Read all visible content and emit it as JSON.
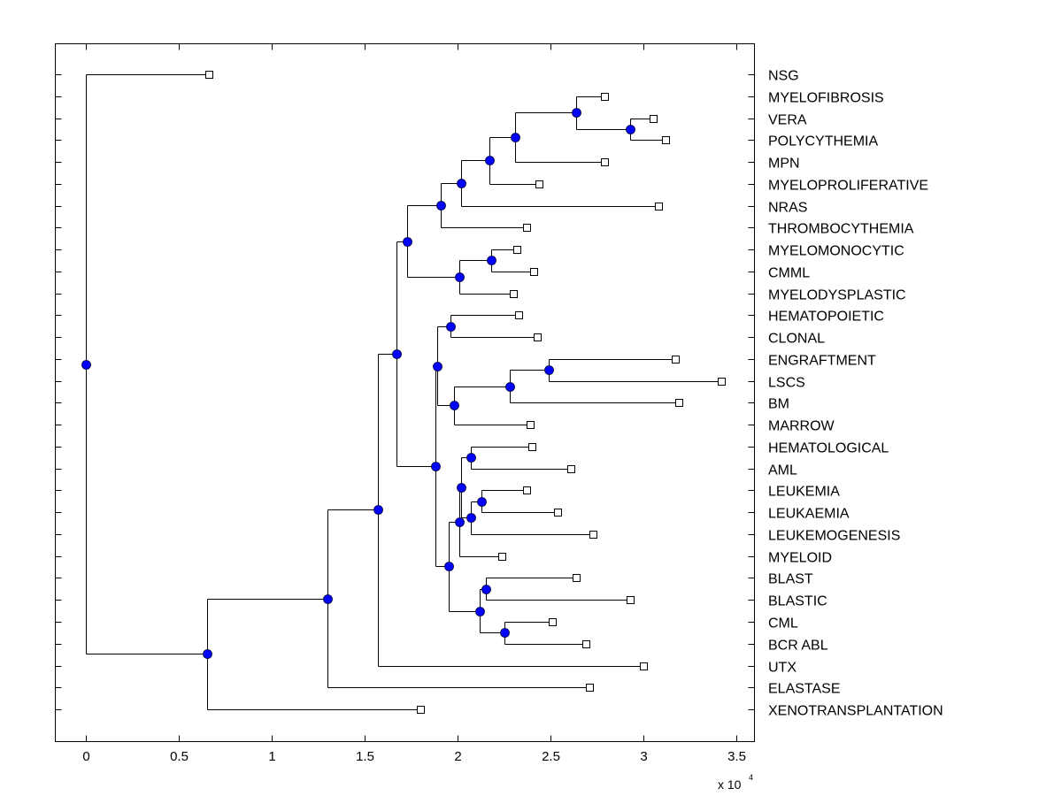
{
  "chart_data": {
    "type": "dendrogram",
    "title": "",
    "xlabel": "",
    "ylabel": "",
    "orientation": "left-to-right",
    "x_scale_multiplier": "x 10",
    "x_scale_exponent": "4",
    "xlim": [
      -0.17,
      3.6
    ],
    "xticks": [
      0,
      0.5,
      1,
      1.5,
      2,
      2.5,
      3,
      3.5
    ],
    "xtick_labels": [
      "0",
      "0.5",
      "1",
      "1.5",
      "2",
      "2.5",
      "3",
      "3.5"
    ],
    "grid": false,
    "units_note": "x values are in units of 10^4",
    "colors": {
      "line": "#000000",
      "internal_node_fill": "#0000ff",
      "leaf_marker_fill": "#ffffff"
    },
    "leaves": [
      {
        "id": "NSG",
        "label": "NSG",
        "x": 0.66
      },
      {
        "id": "MYELOFIBROSIS",
        "label": "MYELOFIBROSIS",
        "x": 2.79
      },
      {
        "id": "VERA",
        "label": "VERA",
        "x": 3.05
      },
      {
        "id": "POLYCYTHEMIA",
        "label": "POLYCYTHEMIA",
        "x": 3.12
      },
      {
        "id": "MPN",
        "label": "MPN",
        "x": 2.79
      },
      {
        "id": "MYELOPROLIFERATIVE",
        "label": "MYELOPROLIFERATIVE",
        "x": 2.44
      },
      {
        "id": "NRAS",
        "label": "NRAS",
        "x": 3.08
      },
      {
        "id": "THROMBOCYTHEMIA",
        "label": "THROMBOCYTHEMIA",
        "x": 2.37
      },
      {
        "id": "MYELOMONOCYTIC",
        "label": "MYELOMONOCYTIC",
        "x": 2.32
      },
      {
        "id": "CMML",
        "label": "CMML",
        "x": 2.41
      },
      {
        "id": "MYELODYSPLASTIC",
        "label": "MYELODYSPLASTIC",
        "x": 2.3
      },
      {
        "id": "HEMATOPOIETIC",
        "label": "HEMATOPOIETIC",
        "x": 2.33
      },
      {
        "id": "CLONAL",
        "label": "CLONAL",
        "x": 2.43
      },
      {
        "id": "ENGRAFTMENT",
        "label": "ENGRAFTMENT",
        "x": 3.17
      },
      {
        "id": "LSCS",
        "label": "LSCS",
        "x": 3.42
      },
      {
        "id": "BM",
        "label": "BM",
        "x": 3.19
      },
      {
        "id": "MARROW",
        "label": "MARROW",
        "x": 2.39
      },
      {
        "id": "HEMATOLOGICAL",
        "label": "HEMATOLOGICAL",
        "x": 2.4
      },
      {
        "id": "AML",
        "label": "AML",
        "x": 2.61
      },
      {
        "id": "LEUKEMIA",
        "label": "LEUKEMIA",
        "x": 2.37
      },
      {
        "id": "LEUKAEMIA",
        "label": "LEUKAEMIA",
        "x": 2.54
      },
      {
        "id": "LEUKEMOGENESIS",
        "label": "LEUKEMOGENESIS",
        "x": 2.73
      },
      {
        "id": "MYELOID",
        "label": "MYELOID",
        "x": 2.24
      },
      {
        "id": "BLAST",
        "label": "BLAST",
        "x": 2.64
      },
      {
        "id": "BLASTIC",
        "label": "BLASTIC",
        "x": 2.93
      },
      {
        "id": "CML",
        "label": "CML",
        "x": 2.51
      },
      {
        "id": "BCR ABL",
        "label": "BCR ABL",
        "x": 2.69
      },
      {
        "id": "UTX",
        "label": "UTX",
        "x": 3.0
      },
      {
        "id": "ELASTASE",
        "label": "ELASTASE",
        "x": 2.71
      },
      {
        "id": "XENOTRANSPLANTATION",
        "label": "XENOTRANSPLANTATION",
        "x": 1.8
      }
    ],
    "internal_nodes": [
      {
        "id": "n_vera_poly",
        "x": 2.93,
        "children": [
          "VERA",
          "POLYCYTHEMIA"
        ]
      },
      {
        "id": "n_myelofib",
        "x": 2.64,
        "children": [
          "MYELOFIBROSIS",
          "n_vera_poly"
        ]
      },
      {
        "id": "n_mpn",
        "x": 2.31,
        "children": [
          "n_myelofib",
          "MPN"
        ]
      },
      {
        "id": "n_myeloprolif",
        "x": 2.17,
        "children": [
          "n_mpn",
          "MYELOPROLIFERATIVE"
        ]
      },
      {
        "id": "n_nras",
        "x": 2.02,
        "children": [
          "n_myeloprolif",
          "NRAS"
        ]
      },
      {
        "id": "n_thrombo",
        "x": 1.91,
        "children": [
          "n_nras",
          "THROMBOCYTHEMIA"
        ]
      },
      {
        "id": "n_mmono_cmml",
        "x": 2.18,
        "children": [
          "MYELOMONOCYTIC",
          "CMML"
        ]
      },
      {
        "id": "n_mdys",
        "x": 2.01,
        "children": [
          "n_mmono_cmml",
          "MYELODYSPLASTIC"
        ]
      },
      {
        "id": "n_upper",
        "x": 1.73,
        "children": [
          "n_thrombo",
          "n_mdys"
        ]
      },
      {
        "id": "n_hemato_clonal",
        "x": 1.96,
        "children": [
          "HEMATOPOIETIC",
          "CLONAL"
        ]
      },
      {
        "id": "n_engraft_lscs",
        "x": 2.49,
        "children": [
          "ENGRAFTMENT",
          "LSCS"
        ]
      },
      {
        "id": "n_bm",
        "x": 2.28,
        "children": [
          "n_engraft_lscs",
          "BM"
        ]
      },
      {
        "id": "n_marrow",
        "x": 1.98,
        "children": [
          "n_bm",
          "MARROW"
        ]
      },
      {
        "id": "n_hemato_marrow",
        "x": 1.89,
        "children": [
          "n_hemato_clonal",
          "n_marrow"
        ]
      },
      {
        "id": "n_hematol_aml",
        "x": 2.07,
        "children": [
          "HEMATOLOGICAL",
          "AML"
        ]
      },
      {
        "id": "n_leuk_pair",
        "x": 2.13,
        "children": [
          "LEUKEMIA",
          "LEUKAEMIA"
        ]
      },
      {
        "id": "n_leukemogen",
        "x": 2.07,
        "children": [
          "n_leuk_pair",
          "LEUKEMOGENESIS"
        ]
      },
      {
        "id": "n_aml_leuk",
        "x": 2.02,
        "children": [
          "n_hematol_aml",
          "n_leukemogen"
        ]
      },
      {
        "id": "n_myeloid",
        "x": 2.01,
        "children": [
          "n_aml_leuk",
          "MYELOID"
        ]
      },
      {
        "id": "n_blast_pair",
        "x": 2.15,
        "children": [
          "BLAST",
          "BLASTIC"
        ]
      },
      {
        "id": "n_cml_bcr",
        "x": 2.25,
        "children": [
          "CML",
          "BCR ABL"
        ]
      },
      {
        "id": "n_blast_cml",
        "x": 2.12,
        "children": [
          "n_blast_pair",
          "n_cml_bcr"
        ]
      },
      {
        "id": "n_leuk_blast",
        "x": 1.95,
        "children": [
          "n_myeloid",
          "n_blast_cml"
        ]
      },
      {
        "id": "n_lower_mid",
        "x": 1.88,
        "children": [
          "n_hemato_marrow",
          "n_leuk_blast"
        ]
      },
      {
        "id": "n_core",
        "x": 1.67,
        "children": [
          "n_upper",
          "n_lower_mid"
        ]
      },
      {
        "id": "n_utx",
        "x": 1.57,
        "children": [
          "n_core",
          "UTX"
        ]
      },
      {
        "id": "n_elastase",
        "x": 1.3,
        "children": [
          "n_utx",
          "ELASTASE"
        ]
      },
      {
        "id": "n_xeno",
        "x": 0.65,
        "children": [
          "n_elastase",
          "XENOTRANSPLANTATION"
        ]
      },
      {
        "id": "root",
        "x": 0.0,
        "children": [
          "NSG",
          "n_xeno"
        ]
      }
    ]
  }
}
